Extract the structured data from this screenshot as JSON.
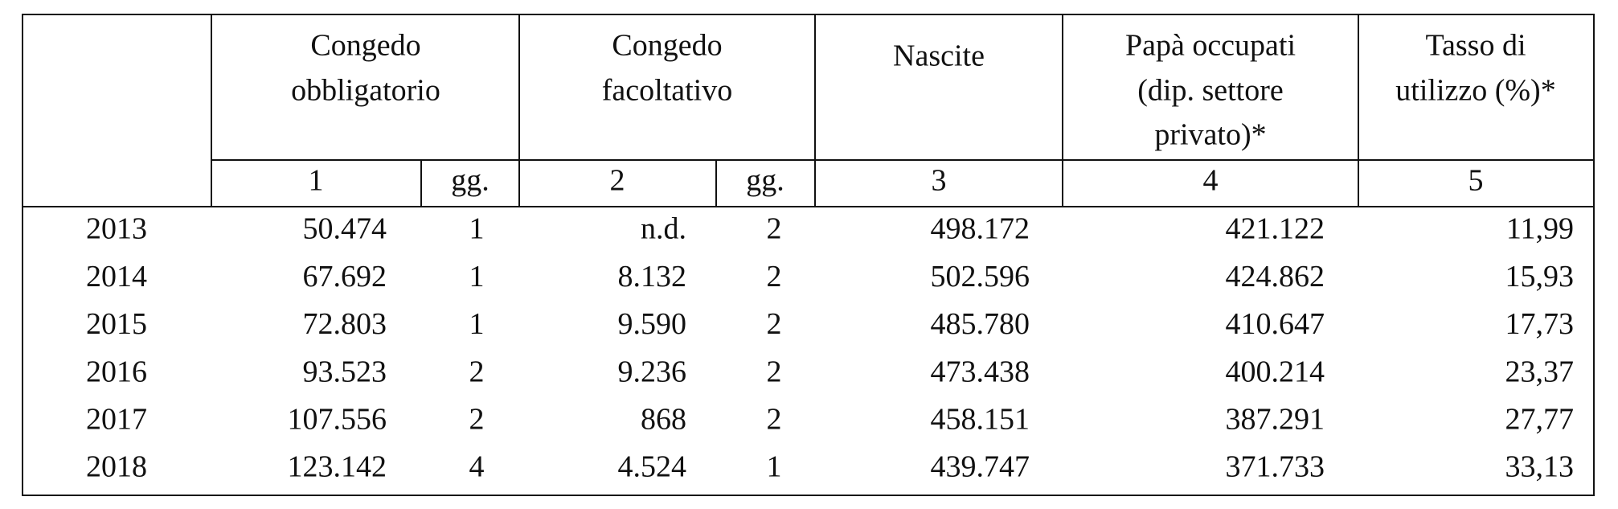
{
  "table": {
    "header": [
      [],
      [
        "Congedo",
        "obbligatorio"
      ],
      [
        "Congedo",
        "facoltativo"
      ],
      [
        "Nascite"
      ],
      [
        "Papà occupati",
        "(dip. settore",
        "privato)*"
      ],
      [
        "Tasso di",
        "utilizzo (%)*"
      ]
    ],
    "subheader": [
      "1",
      "gg.",
      "2",
      "gg.",
      "3",
      "4",
      "5"
    ],
    "rows": [
      [
        "2013",
        "50.474",
        "1",
        "n.d.",
        "2",
        "498.172",
        "421.122",
        "11,99"
      ],
      [
        "2014",
        "67.692",
        "1",
        "8.132",
        "2",
        "502.596",
        "424.862",
        "15,93"
      ],
      [
        "2015",
        "72.803",
        "1",
        "9.590",
        "2",
        "485.780",
        "410.647",
        "17,73"
      ],
      [
        "2016",
        "93.523",
        "2",
        "9.236",
        "2",
        "473.438",
        "400.214",
        "23,37"
      ],
      [
        "2017",
        "107.556",
        "2",
        "868",
        "2",
        "458.151",
        "387.291",
        "27,77"
      ],
      [
        "2018",
        "123.142",
        "4",
        "4.524",
        "1",
        "439.747",
        "371.733",
        "33,13"
      ]
    ]
  }
}
